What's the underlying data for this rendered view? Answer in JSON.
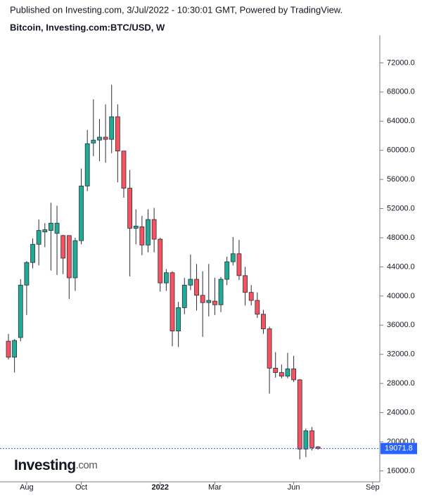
{
  "chart_data": {
    "type": "candlestick",
    "publisher_note": "Published on Investing.com, 3/Jul/2022 - 10:30:01 GMT, Powered by TradingView.",
    "title": "Bitcoin, Investing.com:BTC/USD, W",
    "logo": {
      "main": "Investing",
      "suffix": ".com"
    },
    "categories": [
      null,
      null,
      null,
      "Aug",
      null,
      null,
      null,
      null,
      null,
      null,
      null,
      null,
      "Oct",
      null,
      null,
      null,
      null,
      null,
      null,
      null,
      null,
      null,
      null,
      null,
      null,
      "2022",
      null,
      null,
      null,
      null,
      null,
      null,
      null,
      null,
      "Mar",
      null,
      null,
      null,
      null,
      null,
      null,
      null,
      null,
      null,
      null,
      null,
      null,
      "Jun",
      null,
      null,
      null,
      null,
      null,
      null,
      null,
      null,
      null,
      null,
      null,
      null,
      "Sep"
    ],
    "open": [
      33800,
      31600,
      34300,
      41500,
      44600,
      47100,
      48800,
      49000,
      48600,
      48300,
      48300,
      42500,
      47600,
      55100,
      61000,
      61400,
      61800,
      61500,
      64600,
      59900,
      54800,
      49300,
      49500,
      47000,
      50500,
      47800,
      41800,
      43200,
      35200,
      38400,
      41500,
      42300,
      40100,
      39100,
      39300,
      38800,
      42300,
      44700,
      45800,
      42800,
      40500,
      39400,
      37500,
      35500,
      30100,
      29500,
      29000,
      30000,
      28500,
      19000,
      21500,
      19300,
      null,
      null,
      null,
      null,
      null,
      null,
      null,
      null,
      null
    ],
    "high": [
      34800,
      34100,
      42300,
      44800,
      47900,
      50500,
      50000,
      52800,
      52400,
      48400,
      48300,
      48000,
      57500,
      62800,
      67000,
      64300,
      66300,
      69000,
      66300,
      59900,
      57300,
      51900,
      51000,
      51900,
      52100,
      48000,
      43700,
      43400,
      39200,
      42500,
      45700,
      44400,
      43400,
      44400,
      42500,
      42600,
      45400,
      48100,
      47700,
      44000,
      41500,
      40500,
      38100,
      35800,
      32300,
      30600,
      32200,
      31800,
      28600,
      21800,
      22000,
      19400,
      null,
      null,
      null,
      null,
      null,
      null,
      null,
      null,
      null
    ],
    "low": [
      31300,
      29500,
      33800,
      37400,
      43800,
      44200,
      46700,
      43500,
      42900,
      43000,
      39600,
      40700,
      47100,
      54400,
      59200,
      58500,
      58300,
      59600,
      55600,
      53500,
      42700,
      47100,
      45600,
      46000,
      46000,
      40600,
      40700,
      33100,
      33000,
      37500,
      40800,
      38000,
      34400,
      37200,
      37400,
      37800,
      41500,
      44200,
      42200,
      38700,
      38700,
      37000,
      34800,
      26600,
      28800,
      28700,
      28700,
      28200,
      17600,
      17900,
      18800,
      18900,
      null,
      null,
      null,
      null,
      null,
      null,
      null,
      null,
      null
    ],
    "close": [
      31600,
      33900,
      41500,
      44600,
      47100,
      49000,
      49100,
      50000,
      50000,
      45200,
      42500,
      47600,
      55100,
      60900,
      61400,
      61800,
      61500,
      64600,
      59900,
      54800,
      49300,
      49600,
      47000,
      50500,
      47800,
      41800,
      43200,
      35200,
      38400,
      41500,
      42300,
      40100,
      39100,
      39400,
      38800,
      42300,
      44700,
      45800,
      42800,
      40500,
      39400,
      37500,
      35500,
      30100,
      29500,
      29000,
      30000,
      28500,
      19000,
      21500,
      19200,
      19071.8,
      null,
      null,
      null,
      null,
      null,
      null,
      null,
      null,
      null
    ],
    "up_color": "#22ab94",
    "down_color": "#f7525f",
    "last_price": 19071.8,
    "last_price_color": "#2962ff",
    "ylim": [
      14500,
      75800
    ],
    "yticks": [
      {
        "value": 16000,
        "label": "16000.0"
      },
      {
        "value": 20000,
        "label": "20000.0"
      },
      {
        "value": 24000,
        "label": "24000.0"
      },
      {
        "value": 28000,
        "label": "28000.0"
      },
      {
        "value": 32000,
        "label": "32000.0"
      },
      {
        "value": 36000,
        "label": "36000.0"
      },
      {
        "value": 40000,
        "label": "40000.0"
      },
      {
        "value": 44000,
        "label": "44000.0"
      },
      {
        "value": 48000,
        "label": "48000.0"
      },
      {
        "value": 52000,
        "label": "52000.0"
      },
      {
        "value": 56000,
        "label": "56000.0"
      },
      {
        "value": 60000,
        "label": "60000.0"
      },
      {
        "value": 64000,
        "label": "64000.0"
      },
      {
        "value": 68000,
        "label": "68000.0"
      },
      {
        "value": 72000,
        "label": "72000.0"
      }
    ]
  }
}
